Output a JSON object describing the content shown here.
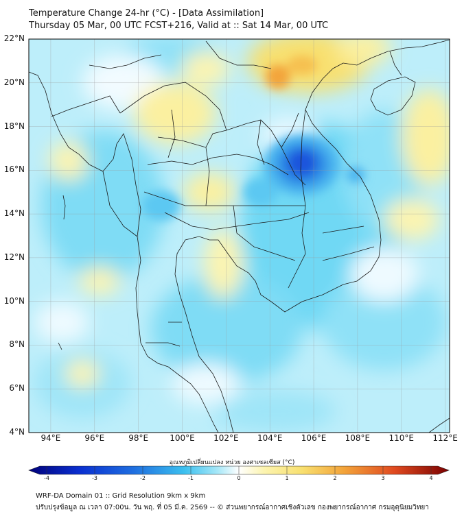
{
  "title_line1": "Temperature Change 24-hr (°C) - [Data Assimilation]",
  "title_line2": "Thursday 05 Mar, 00 UTC FCST+216, Valid at :: Sat 14 Mar, 00 UTC",
  "lat_ticks": [
    "22°N",
    "20°N",
    "18°N",
    "16°N",
    "14°N",
    "12°N",
    "10°N",
    "8°N",
    "6°N",
    "4°N"
  ],
  "lon_ticks": [
    "94°E",
    "96°E",
    "98°E",
    "100°E",
    "102°E",
    "104°E",
    "106°E",
    "108°E",
    "110°E",
    "112°E"
  ],
  "colorbar": {
    "title": "อุณหภูมิเปลี่ยนแปลง หน่วย องศาเซลเซียส (°C)",
    "ticks": [
      "-4",
      "-3",
      "-2",
      "-1",
      "0",
      "1",
      "2",
      "3",
      "4"
    ],
    "range": [
      -4,
      4
    ]
  },
  "footer_line1": "WRF-DA Domain 01 :: Grid Resolution 9km x 9km",
  "footer_line2": "ปรับปรุงข้อมูล ณ เวลา 07:00น. วัน พฤ. ที่ 05 มี.ค. 2569 -- © ส่วนพยากรณ์อากาศเชิงตัวเลข กองพยากรณ์อากาศ กรมอุตุนิยมวิทยา",
  "colors": {
    "light_cyan": "#bdeefa",
    "cyan": "#5cd3f2",
    "blue": "#1f6fe0",
    "dark_blue": "#0a2fd0",
    "white": "#ffffff",
    "light_yellow": "#fcf4b0",
    "yellow": "#f8e070",
    "orange": "#f3a43a",
    "red_orange": "#e76b28"
  }
}
